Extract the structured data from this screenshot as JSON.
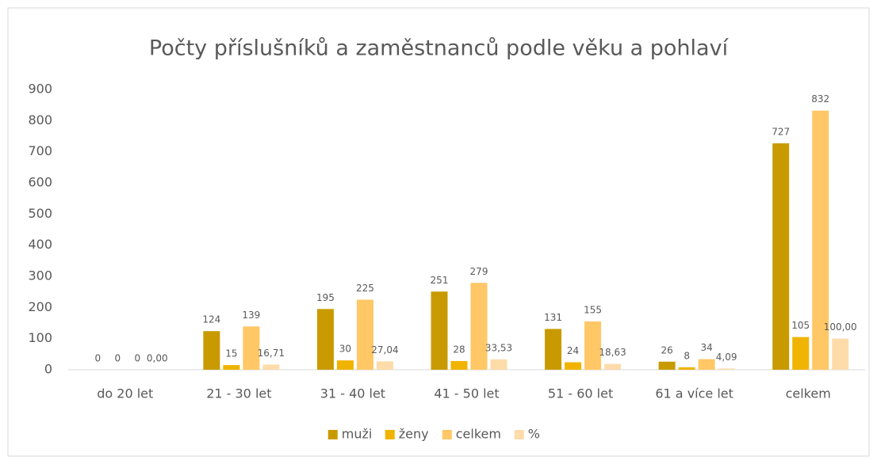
{
  "chart_data": {
    "type": "bar",
    "title": "Počty příslušníků a zaměstnanců podle věku a pohlaví",
    "categories": [
      "do 20 let",
      "21 - 30 let",
      "31 - 40 let",
      "41 - 50 let",
      "51 - 60 let",
      "61 a více let",
      "celkem"
    ],
    "series": [
      {
        "name": "muži",
        "color": "#c89a00",
        "values": [
          0,
          124,
          195,
          251,
          131,
          26,
          727
        ]
      },
      {
        "name": "ženy",
        "color": "#f0b400",
        "values": [
          0,
          15,
          30,
          28,
          24,
          8,
          105
        ]
      },
      {
        "name": "celkem",
        "color": "#ffc766",
        "values": [
          0,
          139,
          225,
          279,
          155,
          34,
          832
        ]
      },
      {
        "name": "%",
        "color": "#fddcaa",
        "values": [
          0,
          16.71,
          27.04,
          33.53,
          18.63,
          4.09,
          100
        ],
        "value_labels": [
          "0,00",
          "16,71",
          "27,04",
          "33,53",
          "18,63",
          "4,09",
          "100,00"
        ]
      }
    ],
    "ylim": [
      0,
      900
    ],
    "yticks": [
      0,
      100,
      200,
      300,
      400,
      500,
      600,
      700,
      800,
      900
    ],
    "grid": false,
    "legend": "bottom"
  }
}
